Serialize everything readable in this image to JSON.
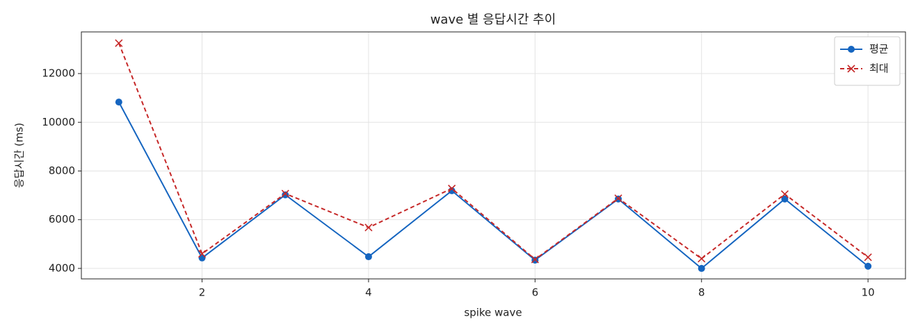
{
  "chart_data": {
    "type": "line",
    "title": "wave 별 응답시간 추이",
    "xlabel": "spike wave",
    "ylabel": "응답시간 (ms)",
    "x": [
      1,
      2,
      3,
      4,
      5,
      6,
      7,
      8,
      9,
      10
    ],
    "series": [
      {
        "name": "평균",
        "color": "#1565c0",
        "marker": "circle",
        "linestyle": "solid",
        "values": [
          10830,
          4430,
          7020,
          4480,
          7190,
          4340,
          6850,
          4000,
          6850,
          4090
        ]
      },
      {
        "name": "최대",
        "color": "#c62828",
        "marker": "x",
        "linestyle": "dashed",
        "values": [
          13250,
          4600,
          7070,
          5680,
          7280,
          4370,
          6880,
          4400,
          7050,
          4460
        ]
      }
    ],
    "xlim": [
      0.55,
      10.45
    ],
    "xticks": [
      2,
      4,
      6,
      8,
      10
    ],
    "ylim": [
      3570,
      13710
    ],
    "yticks": [
      4000,
      6000,
      8000,
      10000,
      12000
    ],
    "grid": true,
    "legend": "upper right"
  }
}
